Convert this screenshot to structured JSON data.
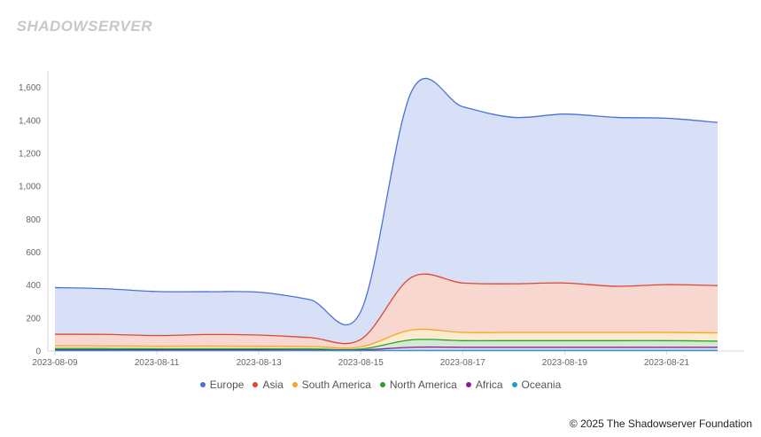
{
  "brand": {
    "logo_text": "SHADOWSERVER"
  },
  "footer": {
    "copyright": "© 2025 The Shadowserver Foundation"
  },
  "chart_data": {
    "type": "area",
    "stacked": true,
    "smooth": true,
    "x": [
      "2023-08-09",
      "2023-08-10",
      "2023-08-11",
      "2023-08-12",
      "2023-08-13",
      "2023-08-14",
      "2023-08-15",
      "2023-08-16",
      "2023-08-17",
      "2023-08-18",
      "2023-08-19",
      "2023-08-20",
      "2023-08-21",
      "2023-08-22"
    ],
    "x_tick_labels": [
      "2023-08-09",
      "2023-08-11",
      "2023-08-13",
      "2023-08-15",
      "2023-08-17",
      "2023-08-19",
      "2023-08-21"
    ],
    "ylim": [
      0,
      1700
    ],
    "y_ticks": [
      0,
      200,
      400,
      600,
      800,
      1000,
      1200,
      1400,
      1600
    ],
    "y_tick_labels": [
      "0",
      "200",
      "400",
      "600",
      "800",
      "1,000",
      "1,200",
      "1,400",
      "1,600"
    ],
    "grid": false,
    "legend_position": "bottom-center",
    "series": [
      {
        "name": "Oceania",
        "color": "#1aa3c4",
        "values": [
          2,
          2,
          2,
          2,
          2,
          2,
          2,
          3,
          3,
          3,
          3,
          3,
          3,
          3
        ]
      },
      {
        "name": "Africa",
        "color": "#8e1a9a",
        "values": [
          5,
          5,
          5,
          5,
          5,
          4,
          4,
          20,
          20,
          20,
          20,
          20,
          20,
          20
        ]
      },
      {
        "name": "North America",
        "color": "#2e9e2e",
        "values": [
          8,
          8,
          7,
          7,
          7,
          7,
          6,
          45,
          40,
          40,
          40,
          40,
          40,
          37
        ]
      },
      {
        "name": "South America",
        "color": "#f5a623",
        "values": [
          17,
          16,
          15,
          16,
          15,
          14,
          13,
          60,
          50,
          50,
          50,
          50,
          50,
          50
        ]
      },
      {
        "name": "Asia",
        "color": "#e0472d",
        "values": [
          70,
          70,
          65,
          70,
          68,
          55,
          45,
          320,
          300,
          295,
          300,
          280,
          290,
          287
        ]
      },
      {
        "name": "Europe",
        "color": "#4a72d4",
        "values": [
          283,
          277,
          267,
          260,
          260,
          230,
          170,
          1130,
          1070,
          1010,
          1025,
          1025,
          1010,
          990
        ]
      }
    ],
    "legend_order": [
      "Europe",
      "Asia",
      "South America",
      "North America",
      "Africa",
      "Oceania"
    ]
  }
}
